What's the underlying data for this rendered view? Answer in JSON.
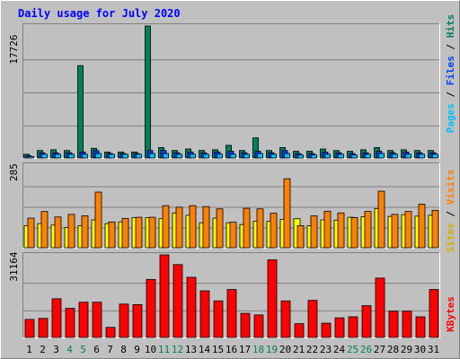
{
  "chart_data": [
    {
      "type": "bar",
      "title": "Daily usage for July 2020",
      "categories": [
        "1",
        "2",
        "3",
        "4",
        "5",
        "6",
        "7",
        "8",
        "9",
        "10",
        "11",
        "12",
        "13",
        "14",
        "15",
        "16",
        "17",
        "18",
        "19",
        "20",
        "21",
        "22",
        "23",
        "24",
        "25",
        "26",
        "27",
        "28",
        "29",
        "30",
        "31"
      ],
      "weekend_days": [
        "4",
        "5",
        "11",
        "12",
        "18",
        "19",
        "25",
        "26"
      ],
      "y_axis_label": "17726",
      "ylim": [
        0,
        17726
      ],
      "right_label_parts": [
        "Pages",
        "Files",
        "Hits"
      ],
      "series": [
        {
          "name": "Hits",
          "color": "#00805c",
          "values": [
            500,
            1000,
            1100,
            1000,
            12400,
            1300,
            800,
            800,
            800,
            17726,
            1400,
            1000,
            1200,
            1000,
            1100,
            1700,
            1000,
            2700,
            1000,
            1400,
            900,
            900,
            1200,
            1000,
            900,
            1100,
            1400,
            1000,
            1100,
            1000,
            1000
          ]
        },
        {
          "name": "Files",
          "color": "#0040ff",
          "values": [
            300,
            700,
            700,
            700,
            800,
            1000,
            600,
            600,
            600,
            1000,
            1000,
            700,
            800,
            700,
            800,
            900,
            700,
            900,
            700,
            1000,
            600,
            600,
            800,
            700,
            600,
            700,
            900,
            700,
            800,
            700,
            700
          ]
        },
        {
          "name": "Pages",
          "color": "#00c0ff",
          "values": [
            200,
            500,
            500,
            500,
            500,
            600,
            500,
            500,
            500,
            600,
            600,
            500,
            500,
            500,
            500,
            500,
            500,
            600,
            500,
            600,
            400,
            400,
            500,
            500,
            400,
            500,
            600,
            500,
            500,
            500,
            500
          ]
        }
      ]
    },
    {
      "type": "bar",
      "categories": [
        "1",
        "2",
        "3",
        "4",
        "5",
        "6",
        "7",
        "8",
        "9",
        "10",
        "11",
        "12",
        "13",
        "14",
        "15",
        "16",
        "17",
        "18",
        "19",
        "20",
        "21",
        "22",
        "23",
        "24",
        "25",
        "26",
        "27",
        "28",
        "29",
        "30",
        "31"
      ],
      "y_axis_label": "285",
      "ylim": [
        0,
        285
      ],
      "right_label_parts": [
        "Sites",
        "Visits"
      ],
      "series": [
        {
          "name": "Sites",
          "color": "#ffff00",
          "values": [
            76,
            83,
            78,
            70,
            76,
            96,
            83,
            89,
            104,
            104,
            100,
            120,
            112,
            86,
            102,
            86,
            80,
            91,
            91,
            98,
            100,
            76,
            96,
            95,
            105,
            107,
            135,
            108,
            114,
            109,
            112
          ]
        },
        {
          "name": "Visits",
          "color": "#ff8000",
          "values": [
            102,
            125,
            106,
            115,
            110,
            192,
            89,
            101,
            105,
            105,
            145,
            140,
            145,
            142,
            134,
            88,
            136,
            134,
            119,
            238,
            76,
            110,
            126,
            120,
            104,
            125,
            195,
            115,
            125,
            150,
            129
          ]
        }
      ]
    },
    {
      "type": "bar",
      "categories": [
        "1",
        "2",
        "3",
        "4",
        "5",
        "6",
        "7",
        "8",
        "9",
        "10",
        "11",
        "12",
        "13",
        "14",
        "15",
        "16",
        "17",
        "18",
        "19",
        "20",
        "21",
        "22",
        "23",
        "24",
        "25",
        "26",
        "27",
        "28",
        "29",
        "30",
        "31"
      ],
      "y_axis_label": "31164",
      "ylim": [
        0,
        31164
      ],
      "right_label_parts": [
        "KBytes"
      ],
      "series": [
        {
          "name": "KBytes",
          "color": "#ff0000",
          "values": [
            6800,
            7200,
            14600,
            11000,
            13300,
            13300,
            3800,
            12600,
            12400,
            21900,
            31164,
            27500,
            22700,
            17600,
            13800,
            18100,
            9100,
            8500,
            29300,
            13800,
            5200,
            14000,
            5400,
            7400,
            7800,
            12000,
            22400,
            9900,
            9900,
            7800,
            18100
          ]
        }
      ]
    }
  ]
}
